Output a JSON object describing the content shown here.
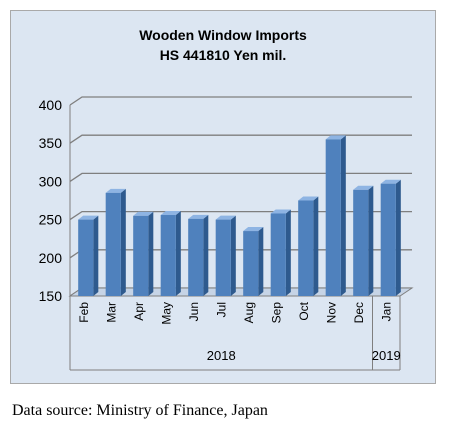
{
  "caption": "Data source: Ministry of Finance, Japan",
  "chart_data": {
    "type": "bar",
    "title": "Wooden Window Imports",
    "subtitle": "HS 441810 Yen mil.",
    "categories": [
      "Feb",
      "Mar",
      "Apr",
      "May",
      "Jun",
      "Jul",
      "Aug",
      "Sep",
      "Oct",
      "Nov",
      "Dec",
      "Jan"
    ],
    "years": [
      {
        "label": "2018",
        "from": 0,
        "to": 10
      },
      {
        "label": "2019",
        "from": 11,
        "to": 11
      }
    ],
    "values": [
      250,
      285,
      255,
      256,
      251,
      250,
      235,
      258,
      275,
      355,
      289,
      297
    ],
    "ylim": [
      150,
      400
    ],
    "yticks": [
      150,
      200,
      250,
      300,
      350,
      400
    ],
    "ytick_labels": [
      "150",
      "200",
      "250",
      "300",
      "350",
      "400"
    ],
    "grid": true,
    "colors": {
      "bar": "#4f81bd",
      "bar_side": "#2e5a8e",
      "bar_top": "#8eb4e3",
      "background": "#dce6f2",
      "grid": "#7f7f7f"
    }
  }
}
